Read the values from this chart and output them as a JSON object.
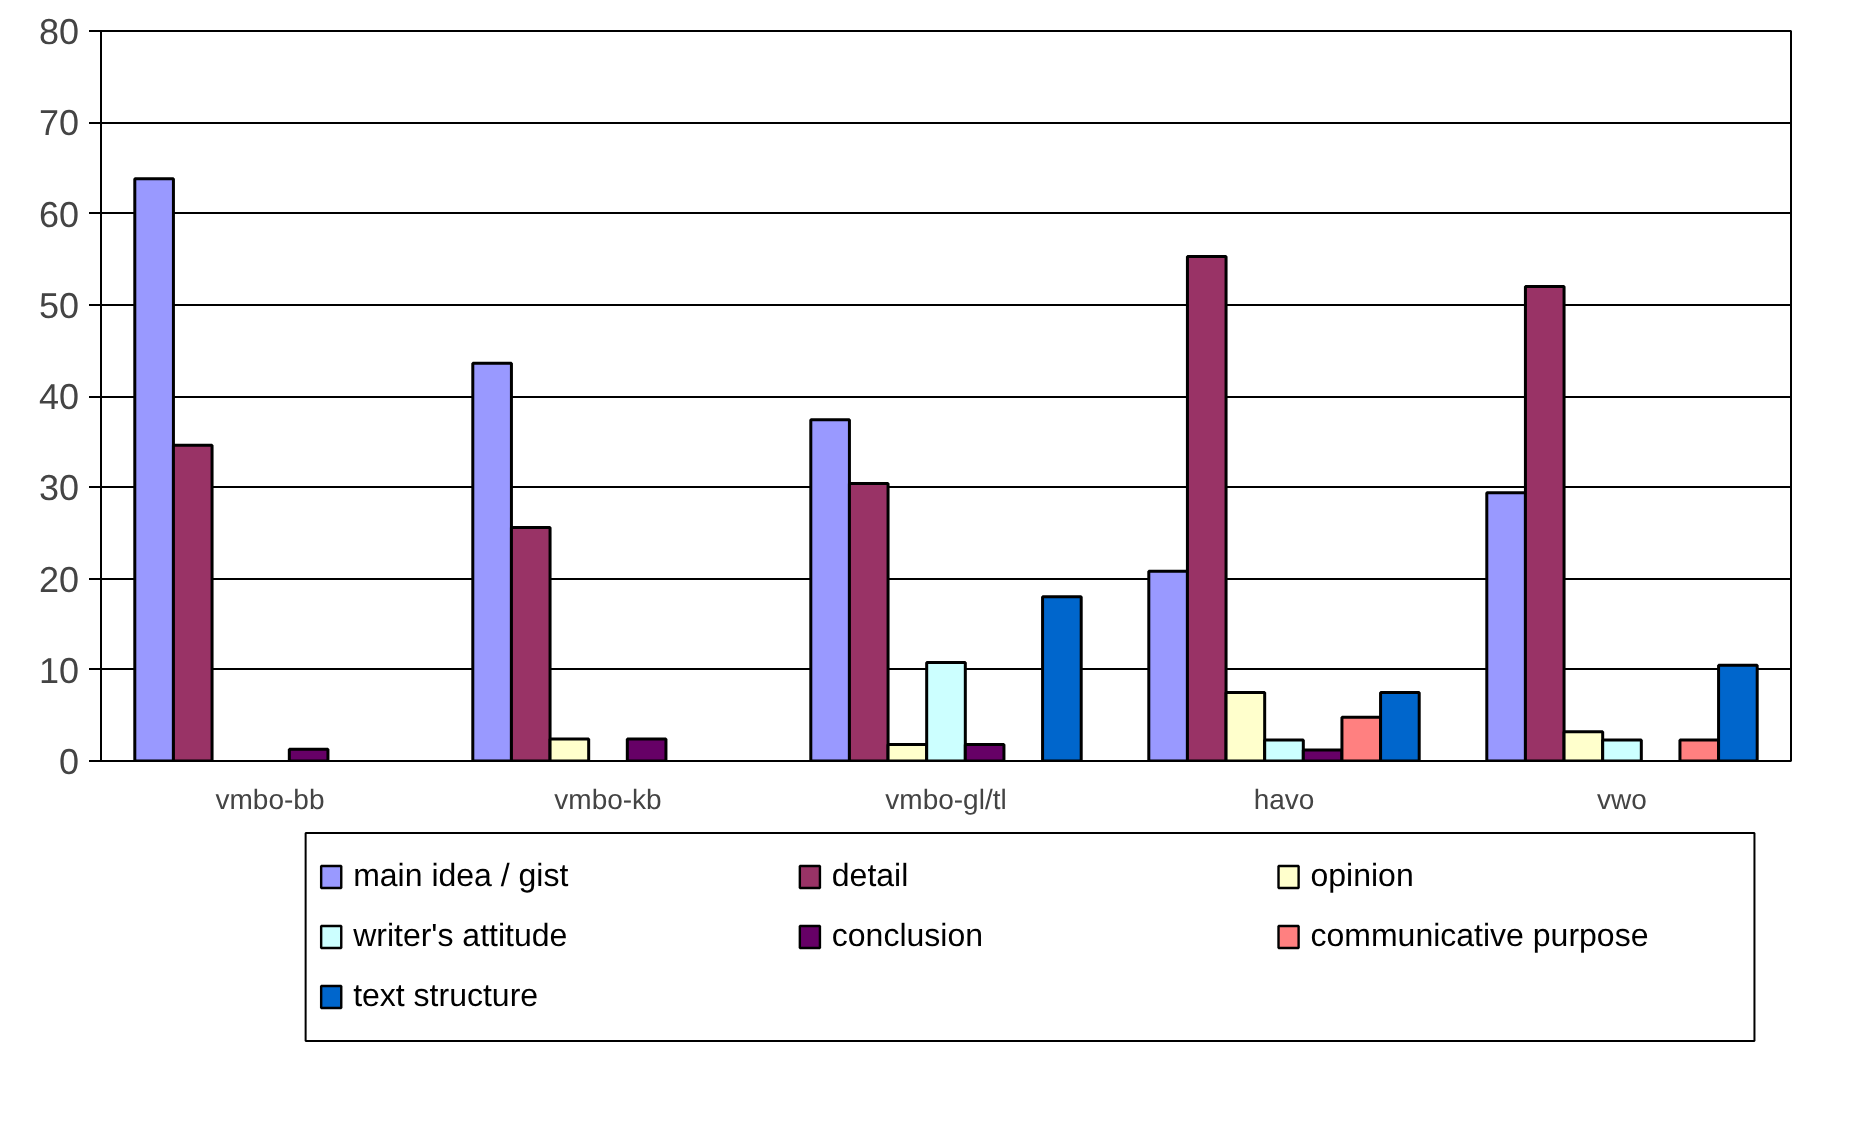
{
  "chart_data": {
    "type": "bar",
    "categories": [
      "vmbo-bb",
      "vmbo-kb",
      "vmbo-gl/tl",
      "havo",
      "vwo"
    ],
    "series": [
      {
        "name": "main idea / gist",
        "color": "#9999ff",
        "values": [
          63.8,
          43.6,
          37.4,
          20.8,
          29.4
        ]
      },
      {
        "name": "detail",
        "color": "#993366",
        "values": [
          34.6,
          25.6,
          30.4,
          55.3,
          52.0
        ]
      },
      {
        "name": "opinion",
        "color": "#ffffcc",
        "values": [
          null,
          2.4,
          1.8,
          7.5,
          3.2
        ]
      },
      {
        "name": "writer's attitude",
        "color": "#ccffff",
        "values": [
          null,
          null,
          10.8,
          2.3,
          2.3
        ]
      },
      {
        "name": "conclusion",
        "color": "#660066",
        "values": [
          1.3,
          2.4,
          1.8,
          1.2,
          null
        ]
      },
      {
        "name": "communicative purpose",
        "color": "#ff8080",
        "values": [
          null,
          null,
          null,
          4.8,
          2.3
        ]
      },
      {
        "name": "text structure",
        "color": "#0066cc",
        "values": [
          null,
          null,
          18.0,
          7.5,
          10.5
        ]
      }
    ],
    "ylim": [
      0,
      80
    ],
    "yticks": [
      0,
      10,
      20,
      30,
      40,
      50,
      60,
      70,
      80
    ],
    "grid": "y",
    "legend": "bottom"
  }
}
